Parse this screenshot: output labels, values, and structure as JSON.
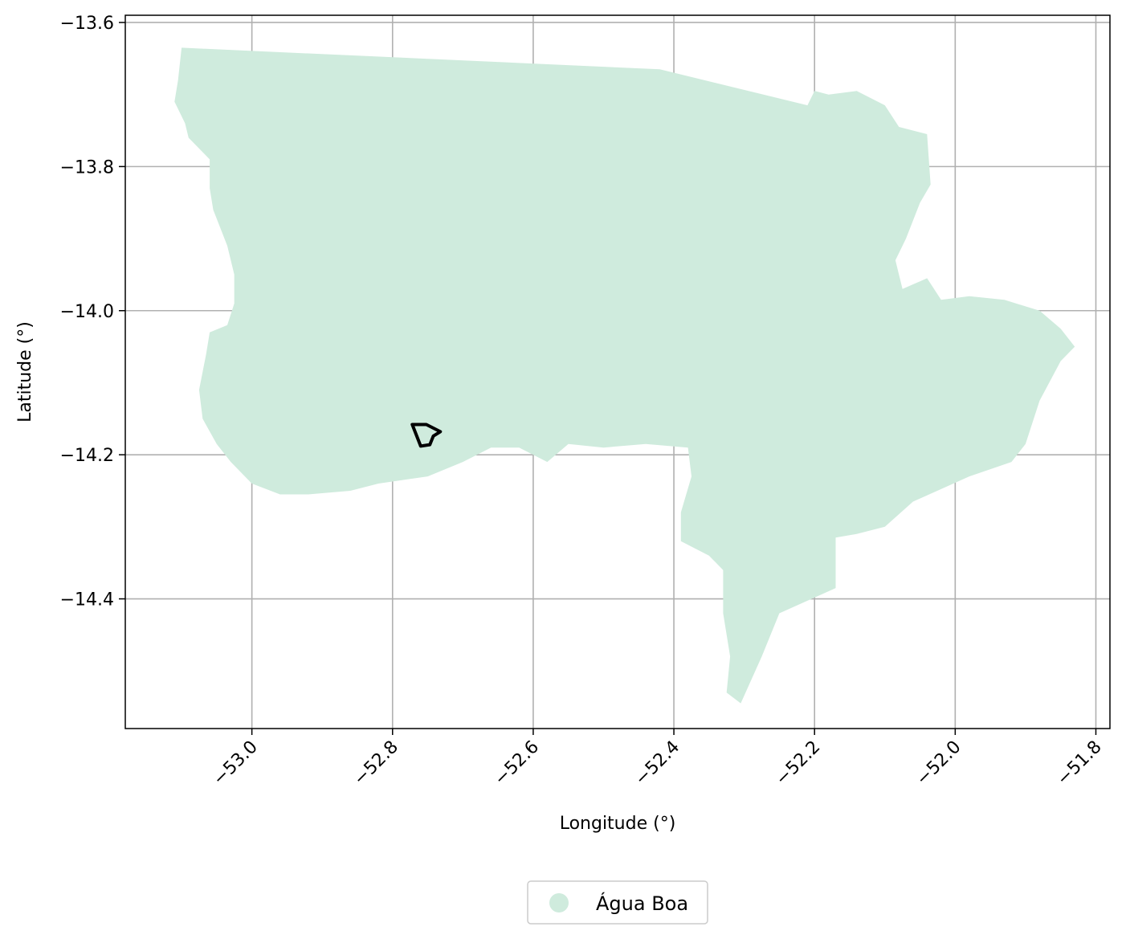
{
  "chart_data": {
    "type": "map",
    "xlabel": "Longitude (°)",
    "ylabel": "Latitude (°)",
    "xlim": [
      -53.18,
      -51.78
    ],
    "ylim": [
      -14.58,
      -13.59
    ],
    "xticks": [
      "−53.0",
      "−52.8",
      "−52.6",
      "−52.4",
      "−52.2",
      "−52.0",
      "−51.8"
    ],
    "xtick_values": [
      -53.0,
      -52.8,
      -52.6,
      -52.4,
      -52.2,
      -52.0,
      -51.8
    ],
    "yticks": [
      "−13.6",
      "−13.8",
      "−14.0",
      "−14.2",
      "−14.4"
    ],
    "ytick_values": [
      -13.6,
      -13.8,
      -14.0,
      -14.2,
      -14.4
    ],
    "grid": true,
    "legend_position": "bottom-center",
    "series": [
      {
        "name": "Água Boa",
        "kind": "filled-region",
        "color": "#cfebdd"
      },
      {
        "kind": "outline",
        "color": "#000000"
      }
    ],
    "region_outline": [
      [
        -53.1,
        -13.635
      ],
      [
        -52.42,
        -13.665
      ],
      [
        -52.21,
        -13.715
      ],
      [
        -52.2,
        -13.695
      ],
      [
        -52.18,
        -13.7
      ],
      [
        -52.14,
        -13.695
      ],
      [
        -52.1,
        -13.715
      ],
      [
        -52.08,
        -13.745
      ],
      [
        -52.04,
        -13.755
      ],
      [
        -52.035,
        -13.825
      ],
      [
        -52.05,
        -13.85
      ],
      [
        -52.07,
        -13.9
      ],
      [
        -52.085,
        -13.93
      ],
      [
        -52.075,
        -13.97
      ],
      [
        -52.04,
        -13.955
      ],
      [
        -52.02,
        -13.985
      ],
      [
        -51.98,
        -13.98
      ],
      [
        -51.93,
        -13.985
      ],
      [
        -51.88,
        -14.0
      ],
      [
        -51.85,
        -14.025
      ],
      [
        -51.83,
        -14.05
      ],
      [
        -51.85,
        -14.07
      ],
      [
        -51.88,
        -14.125
      ],
      [
        -51.9,
        -14.185
      ],
      [
        -51.92,
        -14.21
      ],
      [
        -51.98,
        -14.23
      ],
      [
        -52.06,
        -14.265
      ],
      [
        -52.1,
        -14.3
      ],
      [
        -52.14,
        -14.31
      ],
      [
        -52.17,
        -14.315
      ],
      [
        -52.17,
        -14.385
      ],
      [
        -52.25,
        -14.42
      ],
      [
        -52.275,
        -14.48
      ],
      [
        -52.305,
        -14.545
      ],
      [
        -52.325,
        -14.53
      ],
      [
        -52.32,
        -14.48
      ],
      [
        -52.33,
        -14.42
      ],
      [
        -52.33,
        -14.36
      ],
      [
        -52.35,
        -14.34
      ],
      [
        -52.39,
        -14.32
      ],
      [
        -52.39,
        -14.28
      ],
      [
        -52.375,
        -14.23
      ],
      [
        -52.38,
        -14.19
      ],
      [
        -52.44,
        -14.185
      ],
      [
        -52.5,
        -14.19
      ],
      [
        -52.55,
        -14.185
      ],
      [
        -52.58,
        -14.21
      ],
      [
        -52.62,
        -14.19
      ],
      [
        -52.66,
        -14.19
      ],
      [
        -52.7,
        -14.21
      ],
      [
        -52.75,
        -14.23
      ],
      [
        -52.82,
        -14.24
      ],
      [
        -52.86,
        -14.25
      ],
      [
        -52.92,
        -14.255
      ],
      [
        -52.96,
        -14.255
      ],
      [
        -53.0,
        -14.24
      ],
      [
        -53.03,
        -14.21
      ],
      [
        -53.05,
        -14.185
      ],
      [
        -53.07,
        -14.15
      ],
      [
        -53.075,
        -14.11
      ],
      [
        -53.065,
        -14.06
      ],
      [
        -53.06,
        -14.03
      ],
      [
        -53.035,
        -14.02
      ],
      [
        -53.025,
        -13.99
      ],
      [
        -53.025,
        -13.95
      ],
      [
        -53.035,
        -13.91
      ],
      [
        -53.055,
        -13.86
      ],
      [
        -53.06,
        -13.83
      ],
      [
        -53.06,
        -13.79
      ],
      [
        -53.09,
        -13.76
      ],
      [
        -53.095,
        -13.74
      ],
      [
        -53.11,
        -13.71
      ],
      [
        -53.105,
        -13.68
      ]
    ],
    "highlight_outline": [
      [
        -52.772,
        -14.158
      ],
      [
        -52.752,
        -14.158
      ],
      [
        -52.732,
        -14.168
      ],
      [
        -52.742,
        -14.174
      ],
      [
        -52.747,
        -14.186
      ],
      [
        -52.76,
        -14.188
      ],
      [
        -52.772,
        -14.158
      ]
    ]
  }
}
